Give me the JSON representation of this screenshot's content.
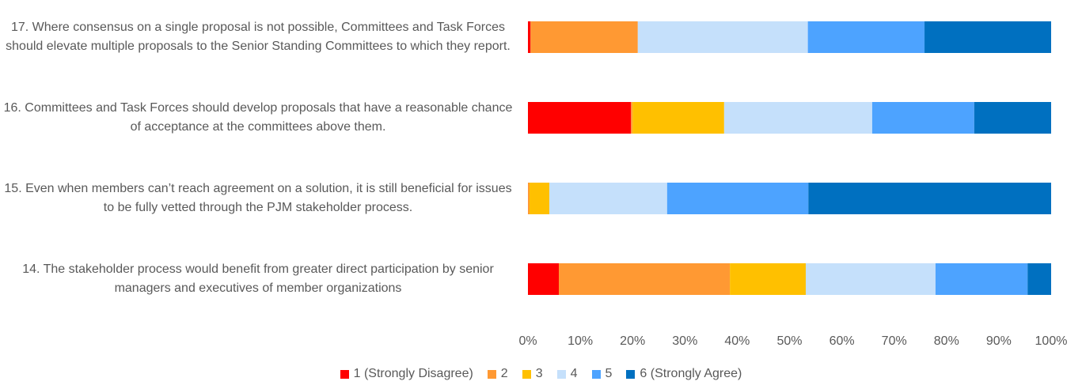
{
  "chart_data": {
    "type": "stacked-bar-horizontal",
    "categories": [
      "17. Where consensus on a single proposal is not possible, Committees and Task Forces should elevate multiple proposals to the Senior Standing Committees to which they report.",
      "16. Committees and Task Forces should develop proposals that have a reasonable chance of acceptance at the committees above them.",
      "15. Even when members can’t reach agreement on a solution, it is still beneficial for issues to be fully vetted through the PJM stakeholder process.",
      "14. The stakeholder process would benefit from greater direct participation by senior managers and executives of member organizations"
    ],
    "series": [
      {
        "name": "1 (Strongly Disagree)",
        "color": "#ff0000",
        "values": [
          0.5,
          19.7,
          0,
          5.9
        ]
      },
      {
        "name": "2",
        "color": "#ff9933",
        "values": [
          20.5,
          0.3,
          0.3,
          32.7
        ]
      },
      {
        "name": "3",
        "color": "#ffc000",
        "values": [
          0,
          17.5,
          3.8,
          14.5
        ]
      },
      {
        "name": "4",
        "color": "#c5e0fb",
        "values": [
          32.5,
          28.3,
          22.5,
          24.8
        ]
      },
      {
        "name": "5",
        "color": "#4da3ff",
        "values": [
          22.3,
          19.5,
          27,
          17.6
        ]
      },
      {
        "name": "6 (Strongly Agree)",
        "color": "#0070c0",
        "values": [
          24.2,
          14.7,
          46.4,
          4.5
        ]
      }
    ],
    "xlim": [
      0,
      100
    ],
    "xticks": [
      {
        "value": 0,
        "label": "0%"
      },
      {
        "value": 10,
        "label": "10%"
      },
      {
        "value": 20,
        "label": "20%"
      },
      {
        "value": 30,
        "label": "30%"
      },
      {
        "value": 40,
        "label": "40%"
      },
      {
        "value": 50,
        "label": "50%"
      },
      {
        "value": 60,
        "label": "60%"
      },
      {
        "value": 70,
        "label": "70%"
      },
      {
        "value": 80,
        "label": "80%"
      },
      {
        "value": 90,
        "label": "90%"
      },
      {
        "value": 100,
        "label": "100%"
      }
    ],
    "grid": false,
    "legend": "bottom"
  }
}
